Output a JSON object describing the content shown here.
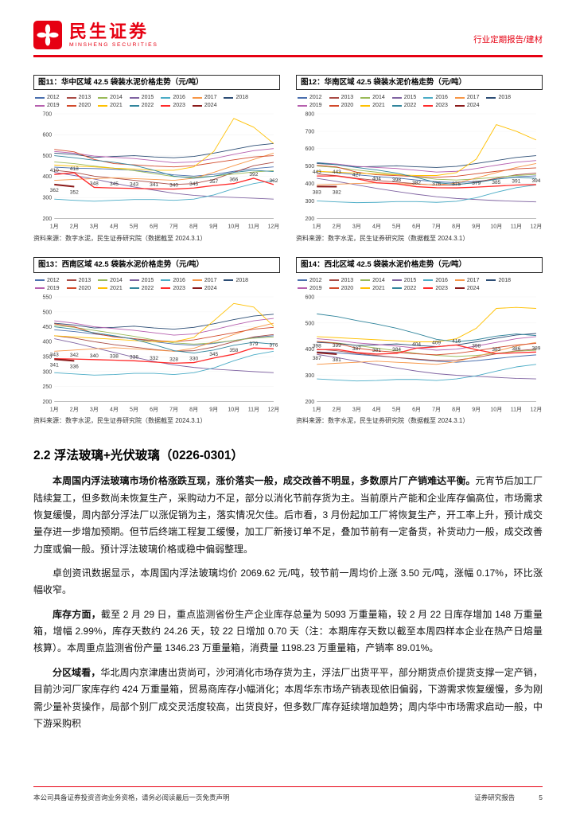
{
  "header": {
    "brand": "民生证券",
    "brand_en": "MINSHENG SECURITIES",
    "report_type": "行业定期报告/建材"
  },
  "colors": {
    "accent": "#e60012"
  },
  "palette": {
    "2012": "#4a6fae",
    "2013": "#a94b45",
    "2014": "#9aba58",
    "2015": "#8064a2",
    "2016": "#4bacc6",
    "2017": "#f79646",
    "2018": "#2c4d75",
    "2019": "#b65fae",
    "2020": "#d2492a",
    "2021": "#ffc000",
    "2022": "#31859c",
    "2023": "#ff2a2a",
    "2024": "#8b1a1a"
  },
  "figures": [
    {
      "title": "图11：华中区域 42.5 袋装水泥价格走势（元/吨）",
      "source": "资料来源：数字水泥，民生证券研究院（数据截至 2024.3.1）"
    },
    {
      "title": "图12：华南区域 42.5 袋装水泥价格走势（元/吨）",
      "source": "资料来源：数字水泥，民生证券研究院（数据截至 2024.3.1）"
    },
    {
      "title": "图13：西南区域 42.5 袋装水泥价格走势（元/吨）",
      "source": "资料来源：数字水泥，民生证券研究院（数据截至 2024.3.1）"
    },
    {
      "title": "图14：西北区域 42.5 袋装水泥价格走势（元/吨）",
      "source": "资料来源：数字水泥，民生证券研究院（数据截至 2024.3.1）"
    }
  ],
  "chart_data": [
    {
      "type": "line",
      "title": "华中区域 42.5 袋装水泥价格走势（元/吨）",
      "x_labels": [
        "1月",
        "2月",
        "3月",
        "4月",
        "5月",
        "6月",
        "7月",
        "8月",
        "9月",
        "10月",
        "11月",
        "12月"
      ],
      "ylim": [
        200,
        700
      ],
      "ytick": 100,
      "label_series": [
        "2023",
        "2024"
      ],
      "series": [
        {
          "name": "2012",
          "values": [
            445,
            440,
            438,
            435,
            430,
            420,
            408,
            402,
            410,
            425,
            438,
            446
          ]
        },
        {
          "name": "2013",
          "values": [
            430,
            420,
            402,
            392,
            382,
            372,
            362,
            366,
            386,
            420,
            452,
            468
          ]
        },
        {
          "name": "2014",
          "values": [
            470,
            462,
            450,
            440,
            428,
            414,
            400,
            396,
            402,
            412,
            422,
            428
          ]
        },
        {
          "name": "2015",
          "values": [
            420,
            405,
            388,
            368,
            350,
            335,
            320,
            310,
            304,
            300,
            296,
            292
          ]
        },
        {
          "name": "2016",
          "values": [
            292,
            286,
            282,
            286,
            290,
            290,
            286,
            292,
            312,
            342,
            366,
            382
          ]
        },
        {
          "name": "2017",
          "values": [
            382,
            386,
            390,
            394,
            390,
            386,
            382,
            392,
            420,
            452,
            482,
            512
          ]
        },
        {
          "name": "2018",
          "values": [
            512,
            506,
            492,
            496,
            500,
            494,
            490,
            496,
            512,
            530,
            548,
            558
          ]
        },
        {
          "name": "2019",
          "values": [
            520,
            512,
            498,
            492,
            486,
            476,
            466,
            470,
            486,
            506,
            524,
            534
          ]
        },
        {
          "name": "2020",
          "values": [
            530,
            518,
            482,
            462,
            456,
            450,
            446,
            452,
            466,
            480,
            494,
            500
          ]
        },
        {
          "name": "2021",
          "values": [
            455,
            450,
            446,
            440,
            436,
            430,
            430,
            446,
            520,
            678,
            636,
            558
          ]
        },
        {
          "name": "2022",
          "values": [
            500,
            490,
            478,
            468,
            454,
            430,
            402,
            392,
            402,
            420,
            430,
            424
          ]
        },
        {
          "name": "2023",
          "values": [
            410,
            418,
            348,
            345,
            343,
            341,
            340,
            345,
            357,
            366,
            392,
            362
          ]
        },
        {
          "name": "2024",
          "values": [
            362,
            352
          ]
        }
      ]
    },
    {
      "type": "line",
      "title": "华南区域 42.5 袋装水泥价格走势（元/吨）",
      "x_labels": [
        "1月",
        "2月",
        "3月",
        "4月",
        "5月",
        "6月",
        "7月",
        "8月",
        "9月",
        "10月",
        "11月",
        "12月"
      ],
      "ylim": [
        200,
        800
      ],
      "ytick": 100,
      "label_series": [
        "2023",
        "2024"
      ],
      "series": [
        {
          "name": "2012",
          "values": [
            470,
            462,
            450,
            440,
            432,
            420,
            410,
            405,
            412,
            425,
            438,
            444
          ]
        },
        {
          "name": "2013",
          "values": [
            455,
            445,
            430,
            418,
            408,
            398,
            390,
            392,
            408,
            430,
            450,
            460
          ]
        },
        {
          "name": "2014",
          "values": [
            500,
            492,
            478,
            465,
            452,
            438,
            425,
            420,
            426,
            436,
            446,
            452
          ]
        },
        {
          "name": "2015",
          "values": [
            430,
            412,
            392,
            372,
            354,
            338,
            324,
            314,
            308,
            302,
            298,
            294
          ]
        },
        {
          "name": "2016",
          "values": [
            300,
            294,
            290,
            292,
            296,
            296,
            292,
            298,
            318,
            350,
            376,
            392
          ]
        },
        {
          "name": "2017",
          "values": [
            392,
            396,
            400,
            404,
            400,
            396,
            392,
            402,
            432,
            462,
            492,
            515
          ]
        },
        {
          "name": "2018",
          "values": [
            515,
            508,
            495,
            498,
            502,
            496,
            492,
            498,
            515,
            532,
            550,
            560
          ]
        },
        {
          "name": "2019",
          "values": [
            520,
            512,
            498,
            492,
            486,
            476,
            466,
            470,
            486,
            505,
            522,
            532
          ]
        },
        {
          "name": "2020",
          "values": [
            505,
            495,
            465,
            450,
            445,
            440,
            436,
            442,
            456,
            470,
            484,
            490
          ]
        },
        {
          "name": "2021",
          "values": [
            470,
            465,
            460,
            455,
            450,
            446,
            446,
            462,
            540,
            738,
            700,
            650
          ]
        },
        {
          "name": "2022",
          "values": [
            520,
            508,
            492,
            478,
            460,
            435,
            405,
            395,
            405,
            425,
            436,
            430
          ]
        },
        {
          "name": "2023",
          "values": [
            443,
            443,
            427,
            404,
            398,
            382,
            376,
            375,
            379,
            385,
            391,
            394
          ]
        },
        {
          "name": "2024",
          "values": [
            383,
            382
          ]
        }
      ]
    },
    {
      "type": "line",
      "title": "西南区域 42.5 袋装水泥价格走势（元/吨）",
      "x_labels": [
        "1月",
        "2月",
        "3月",
        "4月",
        "5月",
        "6月",
        "7月",
        "8月",
        "9月",
        "10月",
        "11月",
        "12月"
      ],
      "ylim": [
        200,
        550
      ],
      "ytick": 50,
      "label_series": [
        "2023",
        "2024"
      ],
      "series": [
        {
          "name": "2012",
          "values": [
            440,
            434,
            426,
            418,
            410,
            400,
            392,
            388,
            394,
            404,
            414,
            420
          ]
        },
        {
          "name": "2013",
          "values": [
            420,
            412,
            400,
            390,
            382,
            374,
            368,
            370,
            382,
            400,
            416,
            424
          ]
        },
        {
          "name": "2014",
          "values": [
            455,
            448,
            438,
            428,
            418,
            406,
            396,
            392,
            396,
            404,
            412,
            416
          ]
        },
        {
          "name": "2015",
          "values": [
            410,
            396,
            380,
            364,
            348,
            334,
            322,
            314,
            308,
            304,
            300,
            296
          ]
        },
        {
          "name": "2016",
          "values": [
            296,
            292,
            288,
            290,
            294,
            294,
            290,
            296,
            312,
            336,
            356,
            368
          ]
        },
        {
          "name": "2017",
          "values": [
            368,
            372,
            376,
            380,
            376,
            372,
            368,
            378,
            400,
            424,
            446,
            462
          ]
        },
        {
          "name": "2018",
          "values": [
            462,
            456,
            446,
            448,
            452,
            446,
            442,
            448,
            460,
            474,
            486,
            492
          ]
        },
        {
          "name": "2019",
          "values": [
            470,
            462,
            450,
            444,
            438,
            430,
            422,
            426,
            440,
            456,
            470,
            478
          ]
        },
        {
          "name": "2020",
          "values": [
            460,
            450,
            428,
            416,
            410,
            404,
            400,
            406,
            418,
            430,
            442,
            448
          ]
        },
        {
          "name": "2021",
          "values": [
            420,
            416,
            412,
            408,
            404,
            400,
            400,
            414,
            470,
            528,
            516,
            452
          ]
        },
        {
          "name": "2022",
          "values": [
            450,
            442,
            430,
            420,
            408,
            390,
            370,
            362,
            372,
            388,
            398,
            392
          ]
        },
        {
          "name": "2023",
          "values": [
            343,
            342,
            340,
            338,
            336,
            332,
            328,
            330,
            345,
            358,
            379,
            376
          ]
        },
        {
          "name": "2024",
          "values": [
            341,
            336
          ]
        }
      ]
    },
    {
      "type": "line",
      "title": "西北区域 42.5 袋装水泥价格走势（元/吨）",
      "x_labels": [
        "1月",
        "2月",
        "3月",
        "4月",
        "5月",
        "6月",
        "7月",
        "8月",
        "9月",
        "10月",
        "11月",
        "12月"
      ],
      "ylim": [
        200,
        600
      ],
      "ytick": 100,
      "label_series": [
        "2023",
        "2024"
      ],
      "series": [
        {
          "name": "2012",
          "values": [
            390,
            386,
            380,
            374,
            368,
            360,
            354,
            350,
            356,
            364,
            372,
            378
          ]
        },
        {
          "name": "2013",
          "values": [
            400,
            394,
            384,
            376,
            368,
            362,
            356,
            358,
            368,
            382,
            394,
            400
          ]
        },
        {
          "name": "2014",
          "values": [
            430,
            424,
            414,
            404,
            394,
            384,
            376,
            372,
            376,
            384,
            392,
            396
          ]
        },
        {
          "name": "2015",
          "values": [
            380,
            368,
            354,
            340,
            328,
            316,
            306,
            300,
            296,
            292,
            288,
            286
          ]
        },
        {
          "name": "2016",
          "values": [
            286,
            282,
            278,
            280,
            284,
            284,
            280,
            286,
            298,
            316,
            332,
            342
          ]
        },
        {
          "name": "2017",
          "values": [
            342,
            346,
            350,
            354,
            350,
            346,
            342,
            352,
            372,
            392,
            412,
            426
          ]
        },
        {
          "name": "2018",
          "values": [
            426,
            422,
            414,
            416,
            420,
            414,
            410,
            416,
            428,
            442,
            454,
            460
          ]
        },
        {
          "name": "2019",
          "values": [
            440,
            434,
            424,
            418,
            412,
            404,
            396,
            400,
            412,
            426,
            440,
            448
          ]
        },
        {
          "name": "2020",
          "values": [
            430,
            422,
            404,
            394,
            388,
            382,
            378,
            384,
            394,
            406,
            416,
            422
          ]
        },
        {
          "name": "2021",
          "values": [
            448,
            444,
            440,
            436,
            432,
            428,
            428,
            440,
            480,
            556,
            560,
            556
          ]
        },
        {
          "name": "2022",
          "values": [
            535,
            525,
            510,
            496,
            480,
            460,
            438,
            428,
            436,
            450,
            458,
            452
          ]
        },
        {
          "name": "2023",
          "values": [
            398,
            399,
            387,
            381,
            384,
            404,
            409,
            416,
            398,
            383,
            386,
            389
          ]
        },
        {
          "name": "2024",
          "values": [
            387,
            381
          ]
        }
      ]
    }
  ],
  "section": {
    "heading": "2.2 浮法玻璃+光伏玻璃（0226-0301）",
    "paragraphs": [
      [
        {
          "t": "本周国内浮法玻璃市场价格涨跌互现，涨价落实一般，成交改善不明显，多数原片厂产销难达平衡。",
          "b": true
        },
        {
          "t": "元宵节后加工厂陆续复工，但多数尚未恢复生产，采购动力不足，部分以消化节前存货为主。当前原片产能和企业库存偏高位，市场需求恢复缓慢，周内部分浮法厂以涨促销为主，落实情况欠佳。后市看，3 月份起加工厂将恢复生产，开工率上升，预计成交量存进一步增加预期。但节后终端工程复工缓慢，加工厂新接订单不足，叠加节前有一定备货，补货动力一般，成交改善力度或偏一般。预计浮法玻璃价格或稳中偏弱整理。",
          "b": false
        }
      ],
      [
        {
          "t": "卓创资讯数据显示，本周国内浮法玻璃均价 2069.62 元/吨，较节前一周均价上涨 3.50 元/吨，涨幅 0.17%，环比涨幅收窄。",
          "b": false
        }
      ],
      [
        {
          "t": "库存方面，",
          "b": true
        },
        {
          "t": "截至 2 月 29 日，重点监测省份生产企业库存总量为 5093 万重量箱，较 2 月 22 日库存增加 148 万重量箱，增幅 2.99%，库存天数约 24.26 天，较 22 日增加 0.70 天（注：本期库存天数以截至本周四样本企业在热产日熔量核算）。本周重点监测省份产量 1346.23 万重量箱，消费量 1198.23 万重量箱，产销率 89.01%。",
          "b": false
        }
      ],
      [
        {
          "t": "分区域看，",
          "b": true
        },
        {
          "t": "华北周内京津唐出货尚可，沙河消化市场存货为主，浮法厂出货平平，部分期货点价提货支撑一定产销，目前沙河厂家库存约 424 万重量箱，贸易商库存小幅消化；本周华东市场产销表现依旧偏弱，下游需求恢复缓慢，多为刚需少量补货操作，局部个别厂成交灵活度较高，出货良好，但多数厂库存延续增加趋势；周内华中市场需求启动一般，中下游采购积",
          "b": false
        }
      ]
    ]
  },
  "footer": {
    "left": "本公司具备证券投资咨询业务资格，请务必阅读最后一页免责声明",
    "right": "证券研究报告",
    "page": "5"
  }
}
